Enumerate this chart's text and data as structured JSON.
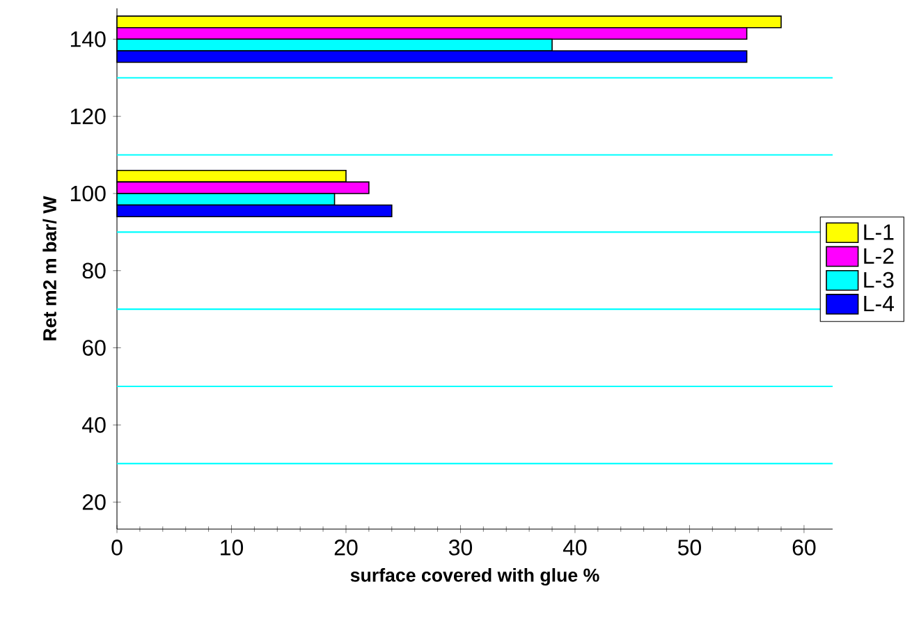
{
  "chart_data": {
    "type": "bar",
    "orientation": "horizontal",
    "xlabel": "surface covered with glue %",
    "ylabel": "Ret m2 m bar/ W",
    "x": [
      140,
      100
    ],
    "series": [
      {
        "name": "L-1",
        "color": "#ffff00",
        "values": [
          58,
          20
        ]
      },
      {
        "name": "L-2",
        "color": "#ff00ff",
        "values": [
          55,
          22
        ]
      },
      {
        "name": "L-3",
        "color": "#00ffff",
        "values": [
          38,
          19
        ]
      },
      {
        "name": "L-4",
        "color": "#0000ff",
        "values": [
          55,
          24
        ]
      }
    ],
    "xlim": [
      0,
      62.5
    ],
    "xticks": [
      0,
      10,
      20,
      30,
      40,
      50,
      60
    ],
    "ylim": [
      13,
      148
    ],
    "yticks": [
      20,
      40,
      60,
      80,
      100,
      120,
      140
    ],
    "ref_lines": [
      {
        "axis": "y",
        "value": 30,
        "color": "#00ffff"
      },
      {
        "axis": "y",
        "value": 50,
        "color": "#00ffff"
      },
      {
        "axis": "y",
        "value": 70,
        "color": "#00ffff"
      },
      {
        "axis": "y",
        "value": 90,
        "color": "#00ffff"
      },
      {
        "axis": "y",
        "value": 110,
        "color": "#00ffff"
      },
      {
        "axis": "y",
        "value": 130,
        "color": "#00ffff"
      }
    ],
    "legend": "right",
    "grid": false
  }
}
